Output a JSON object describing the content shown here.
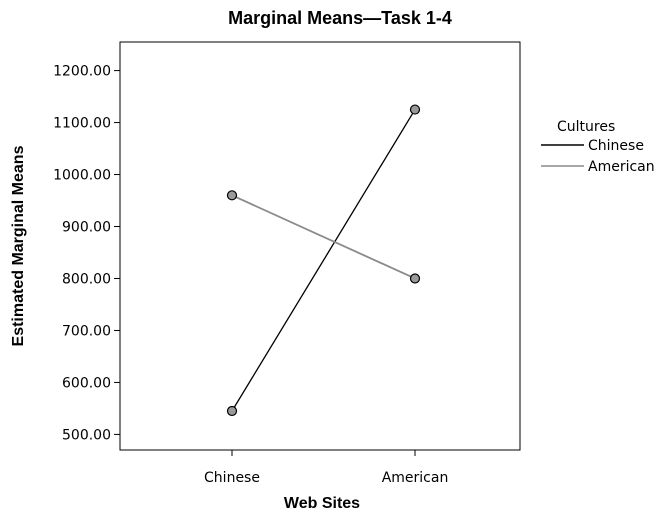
{
  "chart_data": {
    "type": "line",
    "title": "Marginal Means—Task 1-4",
    "xlabel": "Web Sites",
    "ylabel": "Estimated Marginal Means",
    "categories": [
      "Chinese",
      "American"
    ],
    "ylim": [
      470,
      1255
    ],
    "yticks": [
      "500.00",
      "600.00",
      "700.00",
      "800.00",
      "900.00",
      "1000.00",
      "1100.00",
      "1200.00"
    ],
    "legend": {
      "title": "Cultures",
      "placement": "right"
    },
    "series": [
      {
        "name": "Chinese",
        "values": [
          545,
          1125
        ],
        "color": "#000000"
      },
      {
        "name": "American",
        "values": [
          960,
          800
        ],
        "color": "#8a8a8a"
      }
    ],
    "grid": false
  }
}
